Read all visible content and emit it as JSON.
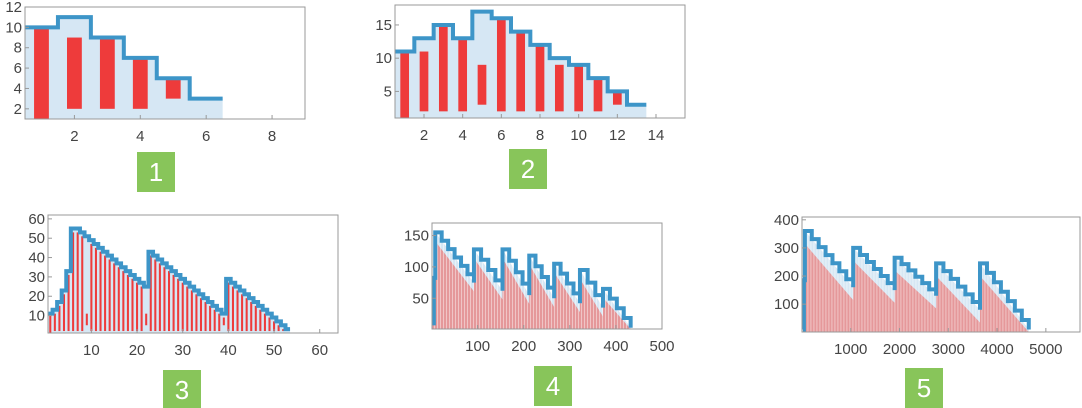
{
  "colors": {
    "step_line": "#3d95c8",
    "area_fill": "#d6e7f4",
    "bar": "#ee3b3b",
    "bar_light": "#e88a8a",
    "frame": "#999999",
    "badge": "#88c55a",
    "badge_text": "#ffffff"
  },
  "chart_data": [
    {
      "type": "bar",
      "badge": "1",
      "xlim": [
        0.5,
        9
      ],
      "ylim": [
        1,
        12
      ],
      "xticks": [
        2,
        4,
        6,
        8
      ],
      "yticks": [
        2,
        4,
        6,
        8,
        10,
        12
      ],
      "step": [
        [
          0.5,
          10
        ],
        [
          1.5,
          11
        ],
        [
          2.5,
          9
        ],
        [
          3.5,
          7
        ],
        [
          4.5,
          5
        ],
        [
          5.5,
          3
        ],
        [
          6.5,
          3
        ]
      ],
      "bars": [
        {
          "x": 1,
          "lo": 0,
          "hi": 10
        },
        {
          "x": 2,
          "lo": 2,
          "hi": 9
        },
        {
          "x": 3,
          "lo": 2,
          "hi": 9
        },
        {
          "x": 4,
          "lo": 2,
          "hi": 7
        },
        {
          "x": 5,
          "lo": 3,
          "hi": 5
        }
      ]
    },
    {
      "type": "bar",
      "badge": "2",
      "xlim": [
        0.5,
        15.5
      ],
      "ylim": [
        1,
        18
      ],
      "xticks": [
        2,
        4,
        6,
        8,
        10,
        12,
        14
      ],
      "yticks": [
        5,
        10,
        15
      ],
      "step": [
        [
          0.5,
          11
        ],
        [
          1.5,
          13
        ],
        [
          2.5,
          15
        ],
        [
          3.5,
          13
        ],
        [
          4.5,
          17
        ],
        [
          5.5,
          16
        ],
        [
          6.5,
          14
        ],
        [
          7.5,
          12
        ],
        [
          8.5,
          10
        ],
        [
          9.5,
          9
        ],
        [
          10.5,
          7
        ],
        [
          11.5,
          5
        ],
        [
          12.5,
          3
        ],
        [
          13.5,
          3
        ]
      ],
      "bars": [
        {
          "x": 1,
          "lo": 0,
          "hi": 11
        },
        {
          "x": 2,
          "lo": 2,
          "hi": 11
        },
        {
          "x": 3,
          "lo": 2,
          "hi": 15
        },
        {
          "x": 4,
          "lo": 2,
          "hi": 13
        },
        {
          "x": 5,
          "lo": 3,
          "hi": 9
        },
        {
          "x": 6,
          "lo": 2,
          "hi": 16
        },
        {
          "x": 7,
          "lo": 2,
          "hi": 14
        },
        {
          "x": 8,
          "lo": 2,
          "hi": 12
        },
        {
          "x": 9,
          "lo": 2,
          "hi": 9
        },
        {
          "x": 10,
          "lo": 2,
          "hi": 9
        },
        {
          "x": 11,
          "lo": 2,
          "hi": 7
        },
        {
          "x": 12,
          "lo": 3,
          "hi": 5
        }
      ]
    },
    {
      "type": "bar",
      "badge": "3",
      "xlim": [
        0.5,
        64
      ],
      "ylim": [
        1,
        62
      ],
      "xticks": [
        10,
        20,
        30,
        40,
        50,
        60
      ],
      "yticks": [
        10,
        20,
        30,
        40,
        50,
        60
      ],
      "step": [
        [
          0.5,
          11
        ],
        [
          1.5,
          13
        ],
        [
          2.5,
          17
        ],
        [
          3.5,
          23
        ],
        [
          4.5,
          33
        ],
        [
          5.5,
          55
        ],
        [
          6.5,
          55
        ],
        [
          7.5,
          53
        ],
        [
          8.5,
          51
        ],
        [
          9.5,
          49
        ],
        [
          10.5,
          47
        ],
        [
          11.5,
          45
        ],
        [
          12.5,
          43
        ],
        [
          13.5,
          41
        ],
        [
          14.5,
          39
        ],
        [
          15.5,
          37
        ],
        [
          16.5,
          35
        ],
        [
          17.5,
          33
        ],
        [
          18.5,
          31
        ],
        [
          19.5,
          29
        ],
        [
          20.5,
          27
        ],
        [
          21.5,
          25
        ],
        [
          22.5,
          43
        ],
        [
          23.5,
          41
        ],
        [
          24.5,
          39
        ],
        [
          25.5,
          37
        ],
        [
          26.5,
          35
        ],
        [
          27.5,
          33
        ],
        [
          28.5,
          31
        ],
        [
          29.5,
          29
        ],
        [
          30.5,
          27
        ],
        [
          31.5,
          25
        ],
        [
          32.5,
          23
        ],
        [
          33.5,
          21
        ],
        [
          34.5,
          19
        ],
        [
          35.5,
          17
        ],
        [
          36.5,
          15
        ],
        [
          37.5,
          13
        ],
        [
          38.5,
          11
        ],
        [
          39.5,
          29
        ],
        [
          40.5,
          27
        ],
        [
          41.5,
          25
        ],
        [
          42.5,
          23
        ],
        [
          43.5,
          21
        ],
        [
          44.5,
          19
        ],
        [
          45.5,
          17
        ],
        [
          46.5,
          15
        ],
        [
          47.5,
          13
        ],
        [
          48.5,
          11
        ],
        [
          49.5,
          9
        ],
        [
          50.5,
          7
        ],
        [
          51.5,
          5
        ],
        [
          52.5,
          3
        ],
        [
          53.5,
          3
        ]
      ],
      "bars": [
        {
          "x": 1,
          "lo": 0,
          "hi": 11
        },
        {
          "x": 2,
          "lo": 2,
          "hi": 11
        },
        {
          "x": 3,
          "lo": 2,
          "hi": 15
        },
        {
          "x": 4,
          "lo": 2,
          "hi": 21
        },
        {
          "x": 5,
          "lo": 2,
          "hi": 31
        },
        {
          "x": 6,
          "lo": 2,
          "hi": 53
        },
        {
          "x": 7,
          "lo": 2,
          "hi": 53
        },
        {
          "x": 8,
          "lo": 2,
          "hi": 51
        },
        {
          "x": 9,
          "lo": 5,
          "hi": 11
        },
        {
          "x": 10,
          "lo": 2,
          "hi": 47
        },
        {
          "x": 11,
          "lo": 2,
          "hi": 45
        },
        {
          "x": 12,
          "lo": 2,
          "hi": 43
        },
        {
          "x": 13,
          "lo": 2,
          "hi": 41
        },
        {
          "x": 14,
          "lo": 2,
          "hi": 39
        },
        {
          "x": 15,
          "lo": 2,
          "hi": 37
        },
        {
          "x": 16,
          "lo": 2,
          "hi": 35
        },
        {
          "x": 17,
          "lo": 2,
          "hi": 33
        },
        {
          "x": 18,
          "lo": 2,
          "hi": 31
        },
        {
          "x": 19,
          "lo": 2,
          "hi": 29
        },
        {
          "x": 20,
          "lo": 2,
          "hi": 27
        },
        {
          "x": 21,
          "lo": 2,
          "hi": 25
        },
        {
          "x": 22,
          "lo": 5,
          "hi": 11
        },
        {
          "x": 23,
          "lo": 2,
          "hi": 41
        },
        {
          "x": 24,
          "lo": 2,
          "hi": 39
        },
        {
          "x": 25,
          "lo": 2,
          "hi": 37
        },
        {
          "x": 26,
          "lo": 2,
          "hi": 35
        },
        {
          "x": 27,
          "lo": 2,
          "hi": 33
        },
        {
          "x": 28,
          "lo": 2,
          "hi": 31
        },
        {
          "x": 29,
          "lo": 2,
          "hi": 29
        },
        {
          "x": 30,
          "lo": 2,
          "hi": 27
        },
        {
          "x": 31,
          "lo": 2,
          "hi": 25
        },
        {
          "x": 32,
          "lo": 2,
          "hi": 23
        },
        {
          "x": 33,
          "lo": 2,
          "hi": 21
        },
        {
          "x": 34,
          "lo": 2,
          "hi": 19
        },
        {
          "x": 35,
          "lo": 2,
          "hi": 17
        },
        {
          "x": 36,
          "lo": 2,
          "hi": 15
        },
        {
          "x": 37,
          "lo": 2,
          "hi": 13
        },
        {
          "x": 38,
          "lo": 2,
          "hi": 11
        },
        {
          "x": 39,
          "lo": 5,
          "hi": 9
        },
        {
          "x": 40,
          "lo": 2,
          "hi": 27
        },
        {
          "x": 41,
          "lo": 2,
          "hi": 25
        },
        {
          "x": 42,
          "lo": 2,
          "hi": 23
        },
        {
          "x": 43,
          "lo": 2,
          "hi": 21
        },
        {
          "x": 44,
          "lo": 2,
          "hi": 19
        },
        {
          "x": 45,
          "lo": 2,
          "hi": 17
        },
        {
          "x": 46,
          "lo": 2,
          "hi": 15
        },
        {
          "x": 47,
          "lo": 2,
          "hi": 13
        },
        {
          "x": 48,
          "lo": 2,
          "hi": 11
        },
        {
          "x": 49,
          "lo": 2,
          "hi": 9
        },
        {
          "x": 50,
          "lo": 2,
          "hi": 7
        },
        {
          "x": 51,
          "lo": 2,
          "hi": 5
        },
        {
          "x": 52,
          "lo": 2,
          "hi": 3
        }
      ],
      "bar_width": 0.45
    },
    {
      "type": "bar",
      "badge": "4",
      "xlim": [
        1,
        500
      ],
      "ylim": [
        1,
        170
      ],
      "xticks": [
        100,
        200,
        300,
        400,
        500
      ],
      "yticks": [
        50,
        100,
        150
      ],
      "envelope": [
        [
          2,
          10
        ],
        [
          8,
          155
        ],
        [
          92,
          75
        ],
        [
          92,
          128
        ],
        [
          154,
          62
        ],
        [
          154,
          128
        ],
        [
          212,
          55
        ],
        [
          212,
          118
        ],
        [
          266,
          50
        ],
        [
          266,
          105
        ],
        [
          322,
          42
        ],
        [
          322,
          95
        ],
        [
          372,
          35
        ],
        [
          372,
          65
        ],
        [
          432,
          3
        ]
      ],
      "bar_band_offset": 14,
      "sawtooth": true
    },
    {
      "type": "bar",
      "badge": "5",
      "xlim": [
        1,
        5700
      ],
      "ylim": [
        1,
        410
      ],
      "xticks": [
        1000,
        2000,
        3000,
        4000,
        5000
      ],
      "yticks": [
        100,
        200,
        300,
        400
      ],
      "envelope": [
        [
          20,
          10
        ],
        [
          60,
          360
        ],
        [
          1050,
          160
        ],
        [
          1050,
          300
        ],
        [
          1900,
          150
        ],
        [
          1900,
          265
        ],
        [
          2750,
          130
        ],
        [
          2750,
          245
        ],
        [
          3650,
          80
        ],
        [
          3650,
          245
        ],
        [
          4650,
          10
        ]
      ],
      "bar_band_offset": 45,
      "sawtooth": true
    }
  ]
}
